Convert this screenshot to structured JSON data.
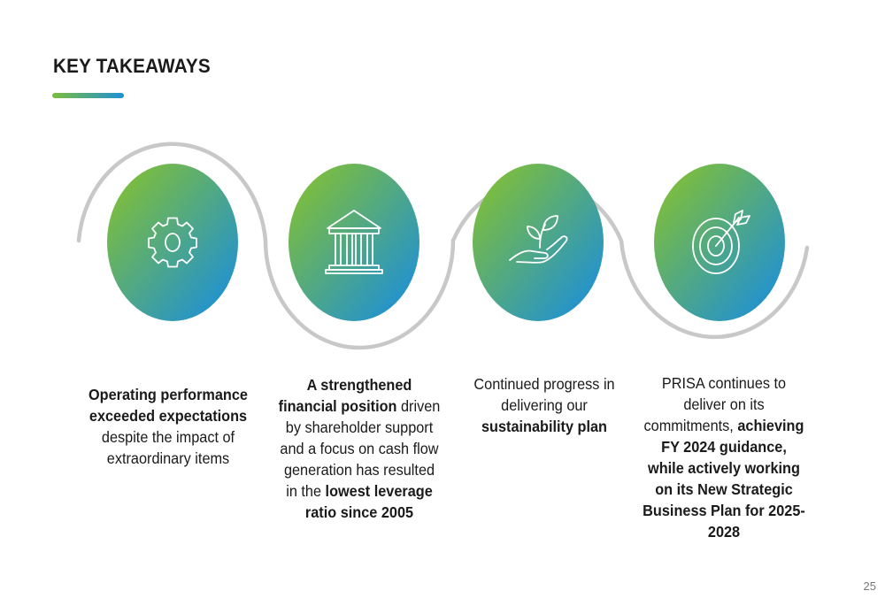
{
  "slide": {
    "title": "KEY TAKEAWAYS",
    "page_number": "25",
    "accent_gradient": [
      "#7cbd3e",
      "#1e90d6"
    ],
    "curve_color": "#c8c8c8"
  },
  "takeaways": [
    {
      "icon": "gear-icon",
      "segments": [
        {
          "text": "Operating performance exceeded expectations",
          "bold": true
        },
        {
          "text": " despite the impact of extraordinary items",
          "bold": false
        }
      ]
    },
    {
      "icon": "bank-building-icon",
      "segments": [
        {
          "text": "A strengthened financial position",
          "bold": true
        },
        {
          "text": " driven by shareholder support and a focus on cash flow generation has resulted in the ",
          "bold": false
        },
        {
          "text": "lowest leverage ratio since 2005",
          "bold": true
        }
      ]
    },
    {
      "icon": "plant-in-hand-icon",
      "segments": [
        {
          "text": "Continued progress in delivering our ",
          "bold": false
        },
        {
          "text": "sustainability plan",
          "bold": true
        }
      ]
    },
    {
      "icon": "target-arrow-icon",
      "segments": [
        {
          "text": "PRISA continues to deliver on its commitments, ",
          "bold": false
        },
        {
          "text": "achieving FY 2024 guidance, while actively working on its New Strategic Business Plan for 2025-2028",
          "bold": true
        }
      ]
    }
  ]
}
